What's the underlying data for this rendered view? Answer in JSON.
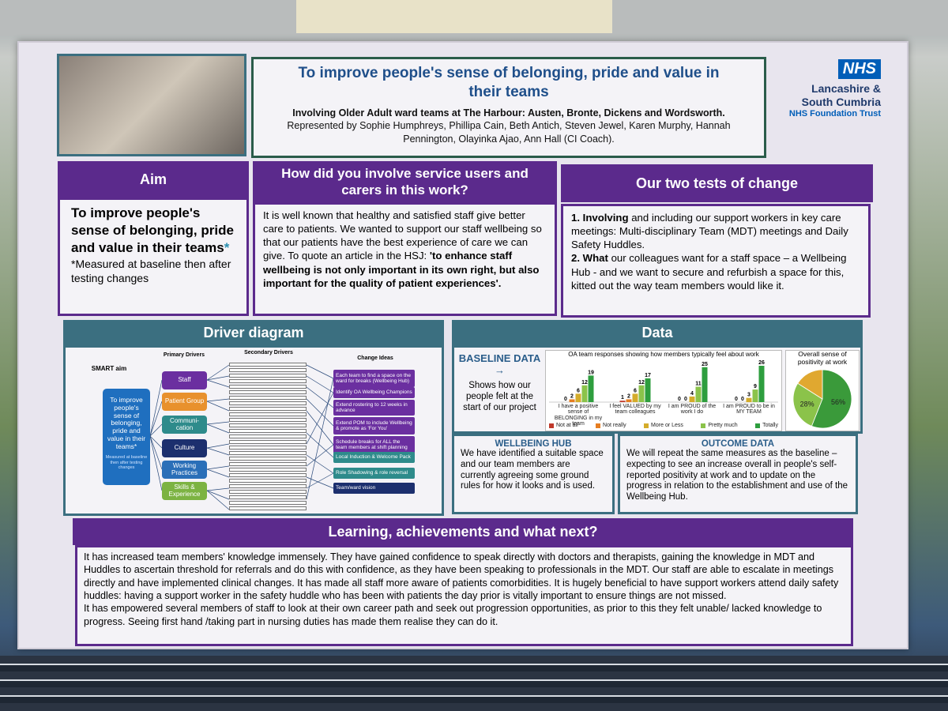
{
  "header": {
    "title": "To improve people's sense of belonging, pride and value in their teams",
    "subtitle_bold": "Involving Older Adult ward teams at The Harbour: Austen, Bronte, Dickens and Wordsworth.",
    "subtitle": "Represented by Sophie Humphreys, Phillipa Cain, Beth Antich, Steven Jewel, Karen Murphy, Hannah Pennington, Olayinka Ajao, Ann Hall (CI Coach)."
  },
  "logo": {
    "badge": "NHS",
    "org": "Lancashire & South Cumbria",
    "trust": "NHS Foundation Trust"
  },
  "aim": {
    "heading": "Aim",
    "statement": "To improve people's sense of belonging, pride and value in their teams",
    "asterisk": "*",
    "note": "*Measured at baseline then after testing changes"
  },
  "involve": {
    "heading": "How did you involve service users and carers in this work?",
    "text": "It is well known that healthy and satisfied staff give better care to patients. We wanted to support our staff wellbeing so that our patients have the best experience of care we can give. To quote an article in the HSJ:",
    "quote": "'to enhance staff wellbeing is not only important in its own right, but also important for the quality of patient experiences'."
  },
  "tests": {
    "heading": "Our two tests of change",
    "items": [
      {
        "lead": "1. Involving",
        "text": "and including our support workers in key care meetings: Multi-disciplinary Team (MDT) meetings and  Daily Safety Huddles."
      },
      {
        "lead": "2. What",
        "text": "our colleagues want for a staff space – a Wellbeing Hub - and we want to secure and refurbish a space for this, kitted out the way team members would like it."
      }
    ]
  },
  "driver": {
    "heading": "Driver diagram",
    "smart_label": "SMART aim",
    "smart_aim": "To improve people's sense of belonging, pride and value in their teams*",
    "smart_note": "Measured at baseline then after testing changes",
    "primary_heading": "Primary Drivers",
    "secondary_heading": "Secondary Drivers",
    "change_heading": "Change Ideas",
    "primary": [
      "Staff",
      "Patient Group",
      "Communi-cation",
      "Culture",
      "Working Practices",
      "Skills & Experience"
    ],
    "change_ideas": [
      "Each team to find a space on the ward for breaks (Wellbeing Hub)",
      "Identify OA Wellbeing Champions",
      "Extend rostering to 12 weeks in advance",
      "Extend POM to include Wellbeing & promote as 'For You'",
      "Schedule breaks for ALL the team members at shift planning",
      "Local Induction & Welcome Pack",
      "Role Shadowing & role reversal",
      "Team/ward vision"
    ]
  },
  "data": {
    "heading": "Data",
    "baseline_title": "BASELINE DATA →",
    "baseline_text": "Shows how our people felt at the start of our project",
    "chart": {
      "type": "bar",
      "title": "OA team responses showing how members typically feel about work",
      "categories": [
        "I have a positive sense of BELONGING in my team",
        "I feel VALUED by my team colleagues",
        "I am PROUD of the work I do",
        "I am PROUD to be in MY TEAM"
      ],
      "series": [
        {
          "name": "Not at all",
          "color": "#c0392b",
          "values": [
            0,
            1,
            0,
            0
          ]
        },
        {
          "name": "Not really",
          "color": "#e67e22",
          "values": [
            2,
            2,
            0,
            0
          ]
        },
        {
          "name": "More or Less",
          "color": "#d4ac2b",
          "values": [
            6,
            6,
            4,
            3
          ]
        },
        {
          "name": "Pretty much",
          "color": "#8bc34a",
          "values": [
            12,
            12,
            11,
            9
          ]
        },
        {
          "name": "Totally",
          "color": "#2e9e3e",
          "values": [
            19,
            17,
            25,
            26
          ]
        }
      ]
    },
    "pie": {
      "type": "pie",
      "title": "Overall sense of positivity at work",
      "values": [
        56,
        28,
        16
      ],
      "value_labels": [
        "56%",
        "28%",
        null
      ],
      "colors": [
        "#3a9a3a",
        "#8bc34a",
        "#e0a830"
      ]
    }
  },
  "wellbeing": {
    "heading": "WELLBEING HUB",
    "text": "We have identified a suitable space and our team members are currently agreeing some ground rules for how it looks and is used."
  },
  "outcome": {
    "heading": "OUTCOME DATA",
    "text": "We will repeat the same measures as the baseline – expecting to see an increase overall in people's self-reported positivity at work and to update on the progress in relation to the establishment and use of the Wellbeing Hub."
  },
  "learning": {
    "heading": "Learning, achievements and what next?",
    "paragraphs": [
      "It has increased team members' knowledge immensely. They have gained confidence to speak directly with doctors and therapists, gaining the knowledge in MDT and Huddles to ascertain threshold for referrals and do this with confidence, as they have been speaking to professionals in the MDT. Our staff are able to escalate in meetings directly and have implemented clinical changes. It has made all staff more aware of patients comorbidities. It is hugely beneficial to have support workers attend daily safety huddles: having a support worker in the safety huddle who has been with patients the day prior is vitally important to ensure things are not missed.",
      "It has empowered several members of staff to look at their own career path and seek out progression opportunities, as prior to this they felt unable/ lacked knowledge to progress. Seeing first hand /taking part in nursing duties has made them realise they can do it."
    ]
  }
}
